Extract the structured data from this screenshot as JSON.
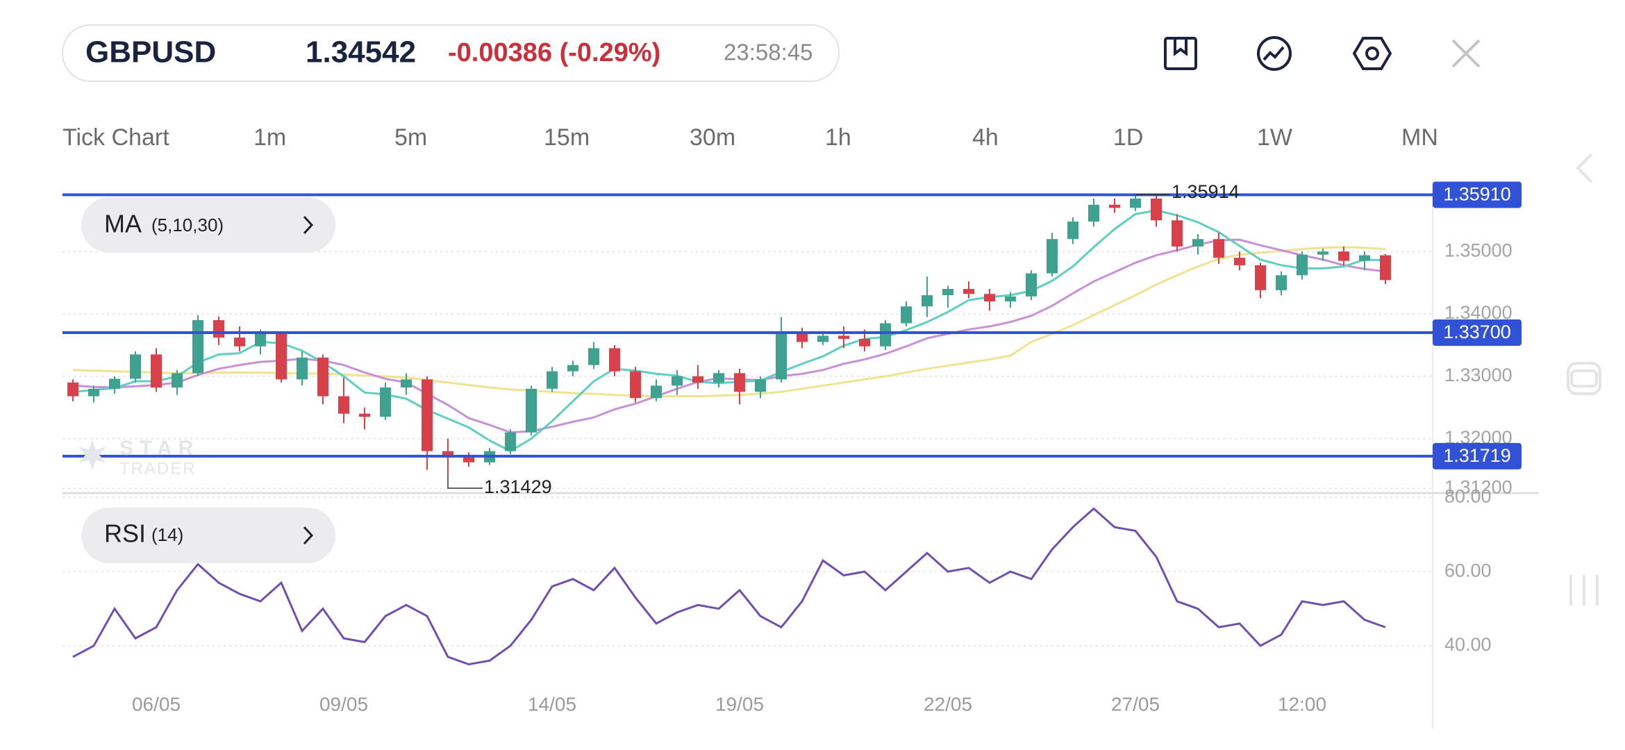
{
  "header": {
    "symbol": "GBPUSD",
    "price": "1.34542",
    "change": "-0.00386 (-0.29%)",
    "time": "23:58:45"
  },
  "timeframes": [
    "Tick Chart",
    "1m",
    "5m",
    "15m",
    "30m",
    "1h",
    "4h",
    "1D",
    "1W",
    "MN"
  ],
  "watermark": {
    "line1": "STAR",
    "line2": "TRADER"
  },
  "chart_data": [
    {
      "type": "candlestick",
      "indicator": {
        "name": "MA",
        "params": "(5,10,30)"
      },
      "x": [
        null,
        null,
        null,
        null,
        "06/05",
        null,
        null,
        null,
        null,
        null,
        null,
        null,
        null,
        "09/05",
        null,
        null,
        null,
        null,
        null,
        null,
        null,
        null,
        null,
        "14/05",
        null,
        null,
        null,
        null,
        null,
        null,
        null,
        null,
        "19/05",
        null,
        null,
        null,
        null,
        null,
        null,
        null,
        null,
        null,
        "22/05",
        null,
        null,
        null,
        null,
        null,
        null,
        null,
        null,
        "27/05",
        null,
        null,
        null,
        null,
        null,
        null,
        null,
        "12:00",
        null,
        null,
        null,
        null
      ],
      "open": [
        1.329,
        1.3268,
        1.328,
        1.3296,
        1.3335,
        1.3282,
        1.3305,
        1.339,
        1.3362,
        1.3348,
        1.3368,
        1.3295,
        1.333,
        1.3268,
        1.324,
        1.3235,
        1.3282,
        1.3295,
        1.318,
        1.317,
        1.3162,
        1.318,
        1.321,
        1.328,
        1.3308,
        1.3318,
        1.3345,
        1.3308,
        1.3265,
        1.3285,
        1.33,
        1.329,
        1.3305,
        1.3275,
        1.3295,
        1.337,
        1.3355,
        1.3365,
        1.336,
        1.3348,
        1.3385,
        1.3412,
        1.343,
        1.344,
        1.3432,
        1.342,
        1.3428,
        1.3465,
        1.352,
        1.3548,
        1.3575,
        1.357,
        1.3585,
        1.355,
        1.3508,
        1.352,
        1.349,
        1.3478,
        1.3438,
        1.3462,
        1.3495,
        1.35,
        1.3485,
        1.3494
      ],
      "high": [
        1.3295,
        1.3285,
        1.33,
        1.334,
        1.3345,
        1.331,
        1.3398,
        1.3396,
        1.338,
        1.3375,
        1.3372,
        1.334,
        1.3335,
        1.3298,
        1.325,
        1.329,
        1.3305,
        1.33,
        1.32,
        1.3178,
        1.3185,
        1.3215,
        1.3285,
        1.3315,
        1.3325,
        1.3355,
        1.335,
        1.3315,
        1.3295,
        1.331,
        1.3318,
        1.331,
        1.3312,
        1.33,
        1.3395,
        1.3378,
        1.3372,
        1.338,
        1.3375,
        1.339,
        1.342,
        1.346,
        1.3445,
        1.3452,
        1.344,
        1.3435,
        1.347,
        1.353,
        1.3555,
        1.3585,
        1.3585,
        1.35914,
        1.359,
        1.356,
        1.3528,
        1.353,
        1.35,
        1.3482,
        1.3468,
        1.35,
        1.3505,
        1.3508,
        1.35,
        1.3496
      ],
      "low": [
        1.326,
        1.3258,
        1.3272,
        1.329,
        1.3275,
        1.327,
        1.33,
        1.335,
        1.334,
        1.3335,
        1.329,
        1.3285,
        1.3255,
        1.3225,
        1.3215,
        1.323,
        1.327,
        1.315,
        1.31429,
        1.3155,
        1.3158,
        1.3175,
        1.3205,
        1.3275,
        1.33,
        1.3312,
        1.33,
        1.3258,
        1.326,
        1.327,
        1.328,
        1.3282,
        1.3255,
        1.3265,
        1.329,
        1.3345,
        1.335,
        1.3345,
        1.334,
        1.3342,
        1.338,
        1.3395,
        1.341,
        1.3425,
        1.3405,
        1.341,
        1.3422,
        1.346,
        1.3512,
        1.354,
        1.3562,
        1.3565,
        1.354,
        1.35,
        1.3495,
        1.348,
        1.347,
        1.3425,
        1.343,
        1.3455,
        1.3485,
        1.3478,
        1.347,
        1.3448
      ],
      "close": [
        1.3268,
        1.328,
        1.3296,
        1.3335,
        1.3282,
        1.3305,
        1.339,
        1.3362,
        1.3348,
        1.3368,
        1.3295,
        1.333,
        1.3268,
        1.324,
        1.3235,
        1.3282,
        1.3295,
        1.318,
        1.317,
        1.3162,
        1.318,
        1.321,
        1.328,
        1.3308,
        1.3318,
        1.3345,
        1.3308,
        1.3265,
        1.3285,
        1.33,
        1.329,
        1.3305,
        1.3275,
        1.3295,
        1.337,
        1.3355,
        1.3365,
        1.336,
        1.3348,
        1.3385,
        1.3412,
        1.343,
        1.344,
        1.3432,
        1.342,
        1.3428,
        1.3465,
        1.352,
        1.3548,
        1.3575,
        1.357,
        1.3585,
        1.355,
        1.3508,
        1.352,
        1.349,
        1.3478,
        1.3438,
        1.3462,
        1.3495,
        1.35,
        1.3485,
        1.3494,
        1.34542
      ],
      "lines": [
        {
          "color": "#f0e28e",
          "values": [
            1.331,
            1.3309,
            1.3308,
            1.3307,
            1.3306,
            1.3305,
            1.3305,
            1.3306,
            1.3306,
            1.3306,
            1.3305,
            1.3305,
            1.3304,
            1.3303,
            1.3301,
            1.33,
            1.3298,
            1.3294,
            1.329,
            1.3286,
            1.3282,
            1.3279,
            1.3277,
            1.3275,
            1.3273,
            1.3272,
            1.327,
            1.3269,
            1.3268,
            1.3268,
            1.3268,
            1.3269,
            1.327,
            1.3272,
            1.3275,
            1.328,
            1.3285,
            1.329,
            1.3295,
            1.33,
            1.3306,
            1.3312,
            1.3317,
            1.3322,
            1.3327,
            1.3333,
            1.3355,
            1.3368,
            1.3382,
            1.3398,
            1.3414,
            1.343,
            1.3447,
            1.3462,
            1.3476,
            1.3488,
            1.3495,
            1.3498,
            1.3501,
            1.3504,
            1.3506,
            1.3507,
            1.3506,
            1.3504
          ]
        },
        {
          "color": "#c98fd8",
          "values": [
            1.3285,
            1.3283,
            1.3282,
            1.3284,
            1.3286,
            1.329,
            1.3302,
            1.3312,
            1.3318,
            1.3323,
            1.3325,
            1.3328,
            1.3325,
            1.3318,
            1.3306,
            1.3296,
            1.329,
            1.3272,
            1.3254,
            1.3233,
            1.3222,
            1.321,
            1.3212,
            1.3219,
            1.3227,
            1.3234,
            1.3247,
            1.3256,
            1.3268,
            1.328,
            1.3291,
            1.3297,
            1.3295,
            1.3294,
            1.33,
            1.3304,
            1.331,
            1.332,
            1.3327,
            1.3336,
            1.3348,
            1.3361,
            1.3368,
            1.3375,
            1.338,
            1.3387,
            1.3397,
            1.3413,
            1.3433,
            1.3452,
            1.3467,
            1.3482,
            1.3494,
            1.3502,
            1.3511,
            1.3518,
            1.3519,
            1.351,
            1.3502,
            1.3494,
            1.3487,
            1.3478,
            1.3472,
            1.3468
          ]
        },
        {
          "color": "#5fcfc2",
          "values": [
            1.3275,
            1.3278,
            1.3281,
            1.3292,
            1.3292,
            1.33,
            1.3322,
            1.3335,
            1.3337,
            1.3355,
            1.3353,
            1.3341,
            1.3322,
            1.33,
            1.3274,
            1.3271,
            1.3264,
            1.3246,
            1.3232,
            1.3218,
            1.3197,
            1.318,
            1.32,
            1.3228,
            1.326,
            1.3292,
            1.3312,
            1.3309,
            1.3304,
            1.3301,
            1.3291,
            1.3289,
            1.3291,
            1.3293,
            1.3307,
            1.332,
            1.3332,
            1.3349,
            1.336,
            1.3363,
            1.3374,
            1.3387,
            1.3403,
            1.3422,
            1.3427,
            1.343,
            1.3437,
            1.3453,
            1.3476,
            1.3507,
            1.3536,
            1.356,
            1.3566,
            1.3558,
            1.3547,
            1.3531,
            1.3509,
            1.3487,
            1.3478,
            1.3473,
            1.3473,
            1.3476,
            1.3487,
            1.3486
          ]
        }
      ],
      "up_color": "#3fa190",
      "down_color": "#d8404a",
      "level_color": "#3152d6",
      "levels": [
        {
          "value": 1.3591,
          "label": "1.35910"
        },
        {
          "value": 1.337,
          "label": "1.33700"
        },
        1.31719
      ],
      "high_marker": 1.35914,
      "low_marker": 1.31429,
      "ylim": [
        1.3115,
        1.3616
      ],
      "yticks": [
        {
          "value": 1.312,
          "label": "1.31200"
        },
        {
          "value": 1.32,
          "label": "1.32000"
        },
        {
          "value": 1.33,
          "label": "1.33000"
        },
        {
          "value": 1.34,
          "label": "1.34000"
        },
        {
          "value": 1.35,
          "label": "1.35000"
        }
      ],
      "grid": true
    },
    {
      "type": "line",
      "indicator": {
        "name": "RSI",
        "params": "(14)"
      },
      "color": "#6f4fb0",
      "values": [
        37,
        40,
        50,
        42,
        45,
        55,
        62,
        57,
        54,
        52,
        57,
        44,
        50,
        42,
        41,
        48,
        51,
        48,
        37,
        35,
        36,
        40,
        47,
        56,
        58,
        55,
        61,
        53,
        46,
        49,
        51,
        50,
        55,
        48,
        45,
        52,
        63,
        59,
        60,
        55,
        60,
        65,
        60,
        61,
        57,
        60,
        58,
        66,
        72,
        77,
        72,
        71,
        64,
        52,
        50,
        45,
        46,
        40,
        43,
        52,
        51,
        52,
        47,
        45
      ],
      "ylim": [
        31,
        81
      ],
      "yticks": [
        {
          "value": 40,
          "label": "40.00"
        },
        {
          "value": 60,
          "label": "60.00"
        },
        {
          "value": 80,
          "label": "80.00"
        }
      ],
      "grid": true
    }
  ]
}
